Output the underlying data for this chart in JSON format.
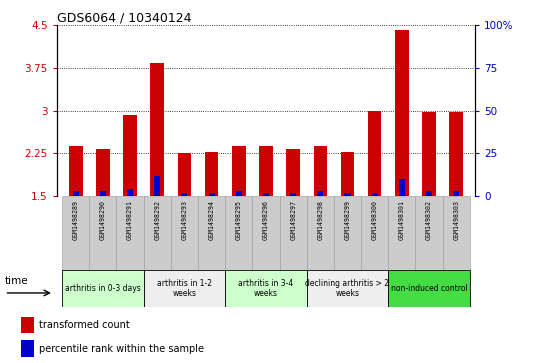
{
  "title": "GDS6064 / 10340124",
  "samples": [
    "GSM1498289",
    "GSM1498290",
    "GSM1498291",
    "GSM1498292",
    "GSM1498293",
    "GSM1498294",
    "GSM1498295",
    "GSM1498296",
    "GSM1498297",
    "GSM1498298",
    "GSM1498299",
    "GSM1498300",
    "GSM1498301",
    "GSM1498302",
    "GSM1498303"
  ],
  "red_values": [
    2.38,
    2.32,
    2.93,
    3.84,
    2.25,
    2.27,
    2.38,
    2.38,
    2.33,
    2.38,
    2.27,
    3.0,
    4.42,
    2.97,
    2.97
  ],
  "blue_values": [
    3,
    3,
    4,
    12,
    2,
    2,
    3,
    2,
    2,
    3,
    2,
    2,
    10,
    3,
    3
  ],
  "ylim_left": [
    1.5,
    4.5
  ],
  "ylim_right": [
    0,
    100
  ],
  "yticks_left": [
    1.5,
    2.25,
    3.0,
    3.75,
    4.5
  ],
  "yticks_right": [
    0,
    25,
    50,
    75,
    100
  ],
  "ytick_labels_left": [
    "1.5",
    "2.25",
    "3",
    "3.75",
    "4.5"
  ],
  "ytick_labels_right": [
    "0",
    "25",
    "50",
    "75",
    "100%"
  ],
  "bar_color_red": "#cc0000",
  "bar_color_blue": "#0000cc",
  "groups": [
    {
      "label": "arthritis in 0-3 days",
      "start": 0,
      "end": 3,
      "color": "#ccffcc"
    },
    {
      "label": "arthritis in 1-2\nweeks",
      "start": 3,
      "end": 6,
      "color": "#eeeeee"
    },
    {
      "label": "arthritis in 3-4\nweeks",
      "start": 6,
      "end": 9,
      "color": "#ccffcc"
    },
    {
      "label": "declining arthritis > 2\nweeks",
      "start": 9,
      "end": 12,
      "color": "#eeeeee"
    },
    {
      "label": "non-induced control",
      "start": 12,
      "end": 15,
      "color": "#44dd44"
    }
  ],
  "legend_red": "transformed count",
  "legend_blue": "percentile rank within the sample",
  "bar_width": 0.5,
  "base_value": 1.5,
  "tick_color_left": "#cc0000",
  "tick_color_right": "#0000cc",
  "xticklabel_bg": "#cccccc"
}
